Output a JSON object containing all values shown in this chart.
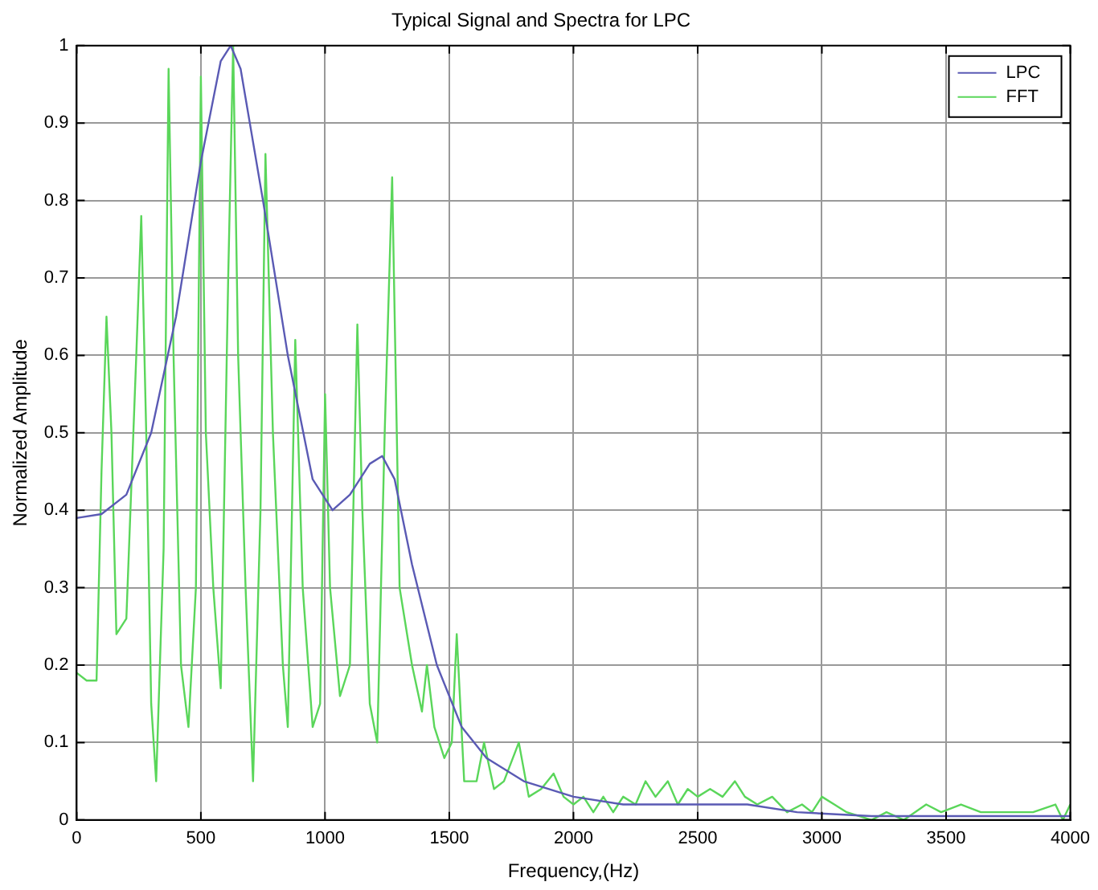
{
  "chart_data": {
    "type": "line",
    "title": "Typical Signal and Spectra for LPC",
    "xlabel": "Frequency,(Hz)",
    "ylabel": "Normalized Amplitude",
    "xlim": [
      0,
      4000
    ],
    "xticks": [
      0,
      500,
      1000,
      1500,
      2000,
      2500,
      3000,
      3500,
      4000
    ],
    "ylim": [
      0,
      1
    ],
    "yticks": [
      0,
      0.1,
      0.2,
      0.3,
      0.4,
      0.5,
      0.6,
      0.7,
      0.8,
      0.9,
      1
    ],
    "grid": true,
    "legend": "top right",
    "marker": "none",
    "line_style": "solid",
    "series": [
      {
        "name": "LPC",
        "color": "#5a5ab4",
        "x": [
          0,
          100,
          200,
          300,
          400,
          500,
          580,
          620,
          660,
          750,
          850,
          950,
          1030,
          1100,
          1180,
          1230,
          1280,
          1350,
          1450,
          1550,
          1650,
          1800,
          2000,
          2200,
          2500,
          2700,
          2900,
          3200,
          3500,
          4000
        ],
        "values": [
          0.39,
          0.395,
          0.42,
          0.5,
          0.65,
          0.85,
          0.98,
          1.0,
          0.97,
          0.8,
          0.6,
          0.44,
          0.4,
          0.42,
          0.46,
          0.47,
          0.44,
          0.33,
          0.2,
          0.12,
          0.08,
          0.05,
          0.03,
          0.02,
          0.02,
          0.02,
          0.01,
          0.005,
          0.005,
          0.005
        ]
      },
      {
        "name": "FFT",
        "color": "#5ad65a",
        "x": [
          0,
          40,
          80,
          100,
          120,
          140,
          160,
          200,
          240,
          260,
          280,
          300,
          320,
          350,
          370,
          390,
          420,
          450,
          480,
          500,
          520,
          550,
          580,
          610,
          630,
          650,
          680,
          710,
          740,
          760,
          790,
          830,
          850,
          880,
          910,
          950,
          980,
          1000,
          1020,
          1060,
          1100,
          1130,
          1150,
          1180,
          1210,
          1240,
          1270,
          1300,
          1350,
          1390,
          1410,
          1440,
          1480,
          1510,
          1530,
          1560,
          1610,
          1640,
          1680,
          1720,
          1780,
          1820,
          1870,
          1920,
          1960,
          2000,
          2040,
          2080,
          2120,
          2160,
          2200,
          2250,
          2290,
          2330,
          2380,
          2420,
          2460,
          2500,
          2550,
          2600,
          2650,
          2690,
          2740,
          2800,
          2860,
          2920,
          2960,
          3000,
          3050,
          3100,
          3200,
          3260,
          3330,
          3420,
          3480,
          3560,
          3640,
          3740,
          3850,
          3940,
          3970,
          4000
        ],
        "values": [
          0.19,
          0.18,
          0.18,
          0.45,
          0.65,
          0.5,
          0.24,
          0.26,
          0.6,
          0.78,
          0.5,
          0.15,
          0.05,
          0.35,
          0.97,
          0.6,
          0.2,
          0.12,
          0.3,
          0.96,
          0.5,
          0.3,
          0.17,
          0.7,
          1.0,
          0.6,
          0.3,
          0.05,
          0.4,
          0.86,
          0.5,
          0.2,
          0.12,
          0.62,
          0.3,
          0.12,
          0.15,
          0.55,
          0.3,
          0.16,
          0.2,
          0.64,
          0.4,
          0.15,
          0.1,
          0.5,
          0.83,
          0.3,
          0.2,
          0.14,
          0.2,
          0.12,
          0.08,
          0.1,
          0.24,
          0.05,
          0.05,
          0.1,
          0.04,
          0.05,
          0.1,
          0.03,
          0.04,
          0.06,
          0.03,
          0.02,
          0.03,
          0.01,
          0.03,
          0.01,
          0.03,
          0.02,
          0.05,
          0.03,
          0.05,
          0.02,
          0.04,
          0.03,
          0.04,
          0.03,
          0.05,
          0.03,
          0.02,
          0.03,
          0.01,
          0.02,
          0.01,
          0.03,
          0.02,
          0.01,
          0,
          0.01,
          0,
          0.02,
          0.01,
          0.02,
          0.01,
          0.01,
          0.01,
          0.02,
          0,
          0.02
        ]
      }
    ]
  }
}
